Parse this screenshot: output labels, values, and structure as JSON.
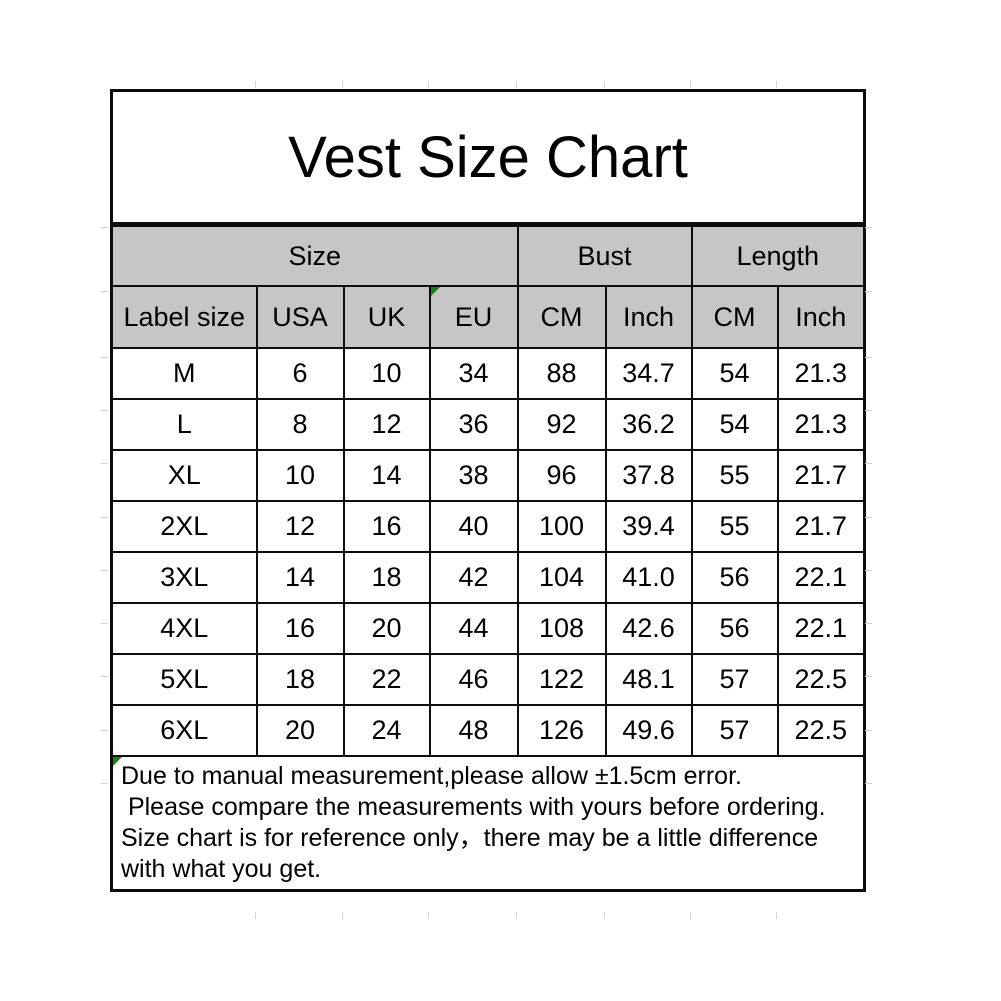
{
  "page_title": "Vest Size Chart",
  "colors": {
    "header_fill": "#c6c6c6",
    "table_border": "#0d0d0d",
    "cell_fill": "#ffffff",
    "corner_marker_green": "#1e7e1e",
    "text": "#000000"
  },
  "icons": {
    "corner_marker": "excel-error-marker-triangle"
  },
  "chart_data": {
    "type": "table",
    "title": "Vest Size Chart",
    "group_columns": [
      {
        "label": "Size",
        "span": 4
      },
      {
        "label": "Bust",
        "span": 2
      },
      {
        "label": "Length",
        "span": 2
      }
    ],
    "columns": [
      "Label size",
      "USA",
      "UK",
      "EU",
      "CM",
      "Inch",
      "CM",
      "Inch"
    ],
    "rows": [
      [
        "M",
        "6",
        "10",
        "34",
        "88",
        "34.7",
        "54",
        "21.3"
      ],
      [
        "L",
        "8",
        "12",
        "36",
        "92",
        "36.2",
        "54",
        "21.3"
      ],
      [
        "XL",
        "10",
        "14",
        "38",
        "96",
        "37.8",
        "55",
        "21.7"
      ],
      [
        "2XL",
        "12",
        "16",
        "40",
        "100",
        "39.4",
        "55",
        "21.7"
      ],
      [
        "3XL",
        "14",
        "18",
        "42",
        "104",
        "41.0",
        "56",
        "22.1"
      ],
      [
        "4XL",
        "16",
        "20",
        "44",
        "108",
        "42.6",
        "56",
        "22.1"
      ],
      [
        "5XL",
        "18",
        "22",
        "46",
        "122",
        "48.1",
        "57",
        "22.5"
      ],
      [
        "6XL",
        "20",
        "24",
        "48",
        "126",
        "49.6",
        "57",
        "22.5"
      ]
    ],
    "notes": [
      "Due to manual measurement,please allow ±1.5cm error.",
      " Please compare the measurements with yours before ordering.",
      "Size chart is for reference only，there may be a little difference",
      "with what you get."
    ]
  }
}
